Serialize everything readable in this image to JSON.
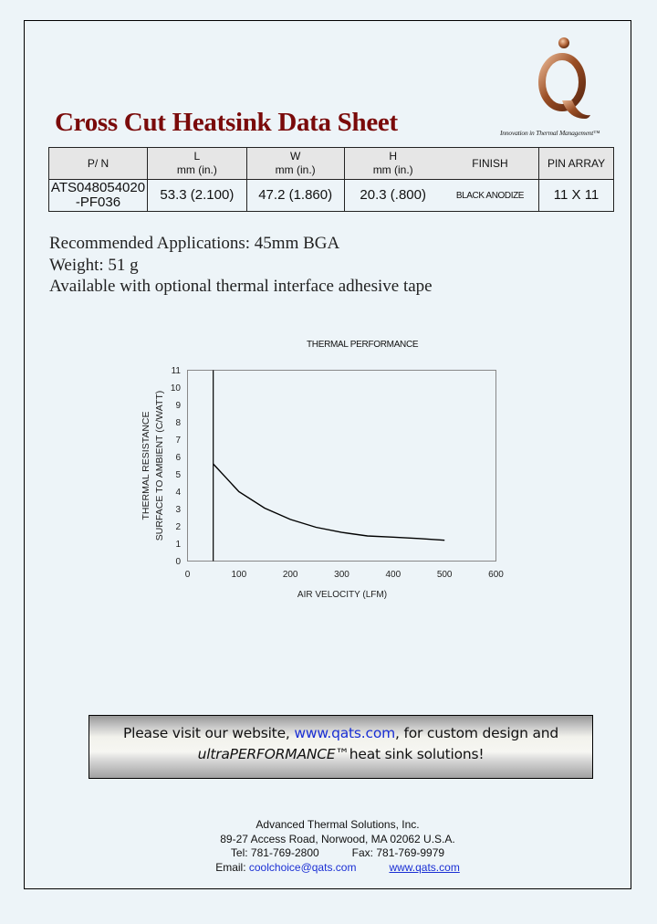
{
  "header": {
    "title": "Cross Cut Heatsink Data Sheet",
    "logo_letter": "Q",
    "tagline": "Innovation in Thermal Management™"
  },
  "spec_table": {
    "headers": [
      {
        "top": "P/ N",
        "bottom": ""
      },
      {
        "top": "L",
        "bottom": "mm (in.)"
      },
      {
        "top": "W",
        "bottom": "mm (in.)"
      },
      {
        "top": "H",
        "bottom": "mm (in.)"
      },
      {
        "top": "FINISH",
        "bottom": ""
      },
      {
        "top": "PIN ARRAY",
        "bottom": ""
      }
    ],
    "row": {
      "part_number_line1": "ATS048054020",
      "part_number_line2": "-PF036",
      "length": "53.3  (2.100)",
      "width": "47.2  (1.860)",
      "height": "20.3  (.800)",
      "finish": "BLACK ANODIZE",
      "pin_array": "11 X 11"
    }
  },
  "info": {
    "applications": "Recommended Applications: 45mm BGA",
    "weight": "Weight: 51 g",
    "tape": "Available with optional thermal interface adhesive tape"
  },
  "chart_data": {
    "type": "line",
    "title": "THERMAL PERFORMANCE",
    "xlabel": "AIR VELOCITY (LFM)",
    "ylabel_line1": "THERMAL RESISTANCE",
    "ylabel_line2": "SURFACE TO AMBIENT (C/WATT)",
    "xlim": [
      0,
      600
    ],
    "ylim": [
      0,
      11
    ],
    "x_ticks": [
      "0",
      "100",
      "200",
      "300",
      "400",
      "500",
      "600"
    ],
    "y_ticks": [
      "0",
      "1",
      "2",
      "3",
      "4",
      "5",
      "6",
      "7",
      "8",
      "9",
      "10",
      "11"
    ],
    "grid": false,
    "legend": null,
    "reference_line_x": 50,
    "series": [
      {
        "name": "Thermal Resistance",
        "x": [
          50,
          75,
          100,
          150,
          200,
          250,
          300,
          350,
          400,
          450,
          500
        ],
        "values": [
          5.6,
          4.8,
          4.0,
          3.05,
          2.4,
          1.95,
          1.65,
          1.45,
          1.38,
          1.3,
          1.2
        ]
      }
    ]
  },
  "banner": {
    "text_before": "Please visit our website, ",
    "link": "www.qats.com",
    "text_after": ", for custom design and",
    "brand": "ultraPERFORMANCE™",
    "text_end": "heat sink solutions!"
  },
  "footer": {
    "company": "Advanced Thermal Solutions, Inc.",
    "address": "89-27 Access Road, Norwood, MA 02062 U.S.A.",
    "tel": "Tel:  781-769-2800",
    "fax": "Fax: 781-769-9979",
    "email_label": "Email: ",
    "email": "coolchoice@qats.com",
    "website": "www.qats.com"
  },
  "colors": {
    "title": "#7a0a0a",
    "link": "#1a2fd4",
    "background": "#edf4f8",
    "table_header": "#e6e6e6"
  }
}
